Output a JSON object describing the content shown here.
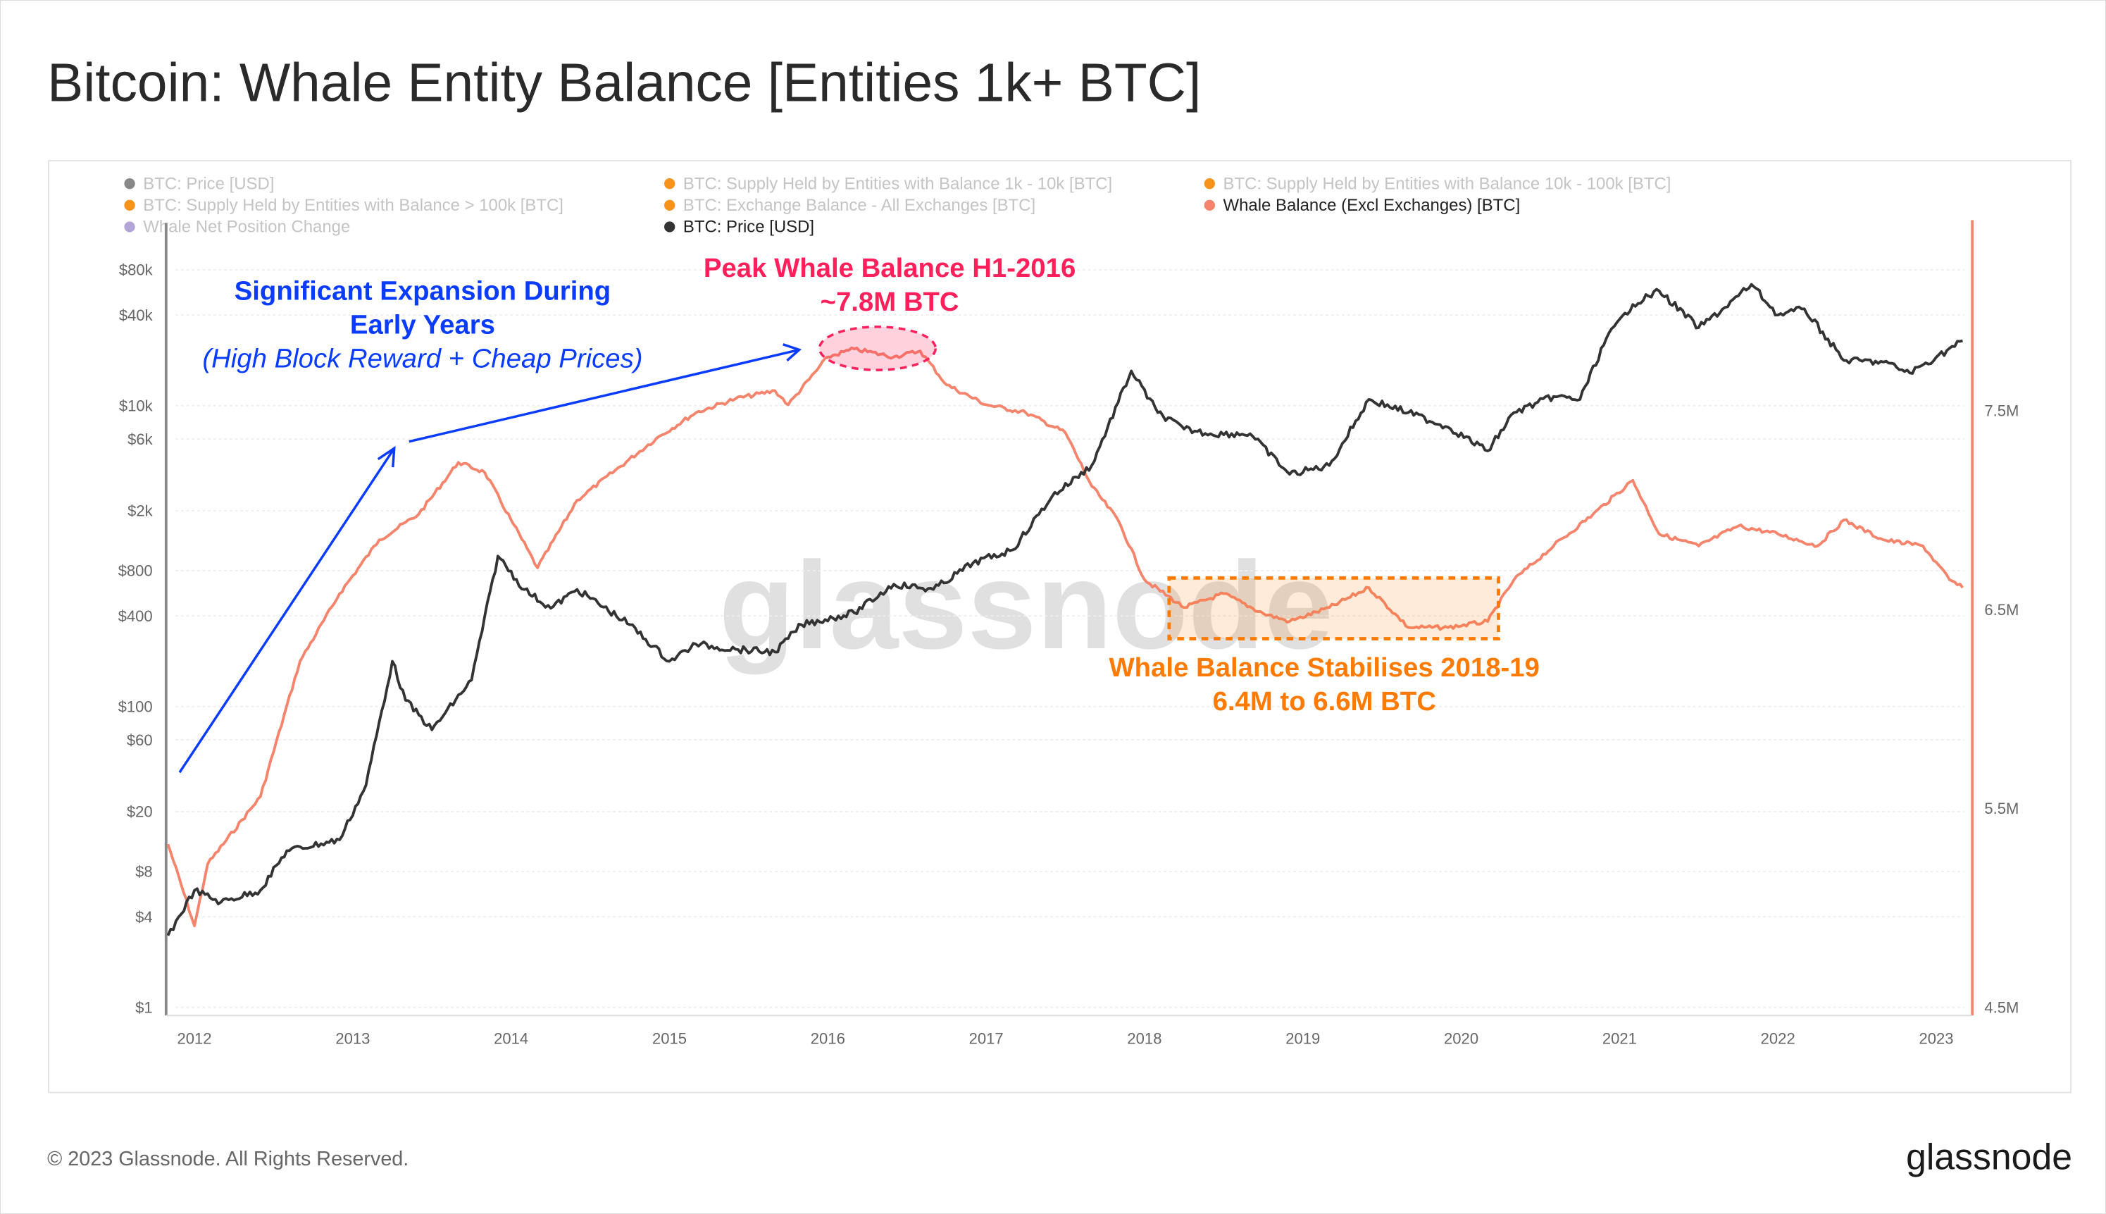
{
  "title": "Bitcoin: Whale Entity Balance [Entities 1k+ BTC]",
  "footer": {
    "copyright": "© 2023 Glassnode. All Rights Reserved.",
    "logo": "glassnode"
  },
  "watermark": "glassnode",
  "legend": [
    {
      "label": "BTC: Price [USD]",
      "color": "#888888",
      "active": false
    },
    {
      "label": "BTC: Supply Held by Entities with Balance 1k - 10k [BTC]",
      "color": "#f7931a",
      "active": false
    },
    {
      "label": "BTC: Supply Held by Entities with Balance 10k - 100k [BTC]",
      "color": "#f7931a",
      "active": false
    },
    {
      "label": "BTC: Supply Held by Entities with Balance > 100k [BTC]",
      "color": "#f7931a",
      "active": false
    },
    {
      "label": "BTC: Exchange Balance - All Exchanges [BTC]",
      "color": "#f7931a",
      "active": false
    },
    {
      "label": "Whale Balance (Excl Exchanges) [BTC]",
      "color": "#f4846c",
      "active": true
    },
    {
      "label": "Whale Net Position Change",
      "color": "#b3a6d6",
      "active": false
    },
    {
      "label": "BTC: Price [USD]",
      "color": "#333333",
      "active": true
    }
  ],
  "annotations": {
    "expansion_line1": "Significant Expansion During",
    "expansion_line2": "Early Years",
    "expansion_line3": "(High Block Reward + Cheap Prices)",
    "peak_line1": "Peak Whale Balance H1-2016",
    "peak_line2": "~7.8M BTC",
    "stable_line1": "Whale Balance Stabilises 2018-19",
    "stable_line2": "6.4M to 6.6M BTC",
    "colors": {
      "expansion": "#0a3cff",
      "peak": "#ff1f5a",
      "stable": "#ff7a00"
    }
  },
  "chart_data": {
    "type": "line",
    "title": "Bitcoin: Whale Entity Balance [Entities 1k+ BTC]",
    "x_ticks": [
      "2012",
      "2013",
      "2014",
      "2015",
      "2016",
      "2017",
      "2018",
      "2019",
      "2020",
      "2021",
      "2022",
      "2023"
    ],
    "y_left": {
      "scale": "log",
      "ticks": [
        {
          "v": 80000,
          "label": "$80k"
        },
        {
          "v": 40000,
          "label": "$40k"
        },
        {
          "v": 10000,
          "label": "$10k"
        },
        {
          "v": 6000,
          "label": "$6k"
        },
        {
          "v": 2000,
          "label": "$2k"
        },
        {
          "v": 800,
          "label": "$800"
        },
        {
          "v": 400,
          "label": "$400"
        },
        {
          "v": 100,
          "label": "$100"
        },
        {
          "v": 60,
          "label": "$60"
        },
        {
          "v": 20,
          "label": "$20"
        },
        {
          "v": 8,
          "label": "$8"
        },
        {
          "v": 4,
          "label": "$4"
        },
        {
          "v": 1,
          "label": "$1"
        }
      ],
      "range": [
        1,
        80000
      ]
    },
    "y_right": {
      "scale": "linear",
      "ticks": [
        {
          "v": 7.5,
          "label": "7.5M"
        },
        {
          "v": 6.5,
          "label": "6.5M"
        },
        {
          "v": 5.5,
          "label": "5.5M"
        },
        {
          "v": 4.5,
          "label": "4.5M"
        }
      ],
      "range": [
        4.5,
        7.8
      ],
      "unit": "M BTC"
    },
    "grid": true,
    "legend_position": "top",
    "series": [
      {
        "name": "BTC: Price [USD]",
        "axis": "left",
        "color": "#333333",
        "points": [
          [
            "2011-11",
            3
          ],
          [
            "2012-01",
            6
          ],
          [
            "2012-03",
            5
          ],
          [
            "2012-06",
            6
          ],
          [
            "2012-08",
            11
          ],
          [
            "2012-12",
            13
          ],
          [
            "2013-02",
            30
          ],
          [
            "2013-04",
            200
          ],
          [
            "2013-05",
            110
          ],
          [
            "2013-07",
            70
          ],
          [
            "2013-10",
            150
          ],
          [
            "2013-12",
            1000
          ],
          [
            "2014-02",
            600
          ],
          [
            "2014-04",
            450
          ],
          [
            "2014-06",
            600
          ],
          [
            "2014-10",
            350
          ],
          [
            "2015-01",
            200
          ],
          [
            "2015-03",
            260
          ],
          [
            "2015-06",
            240
          ],
          [
            "2015-09",
            230
          ],
          [
            "2015-11",
            350
          ],
          [
            "2016-03",
            420
          ],
          [
            "2016-06",
            650
          ],
          [
            "2016-09",
            600
          ],
          [
            "2016-12",
            900
          ],
          [
            "2017-03",
            1100
          ],
          [
            "2017-06",
            2500
          ],
          [
            "2017-09",
            4000
          ],
          [
            "2017-12",
            17000
          ],
          [
            "2018-02",
            9000
          ],
          [
            "2018-04",
            7000
          ],
          [
            "2018-06",
            6500
          ],
          [
            "2018-09",
            6500
          ],
          [
            "2018-12",
            3500
          ],
          [
            "2019-03",
            4000
          ],
          [
            "2019-06",
            11000
          ],
          [
            "2019-09",
            9000
          ],
          [
            "2019-12",
            7200
          ],
          [
            "2020-03",
            5000
          ],
          [
            "2020-05",
            9000
          ],
          [
            "2020-08",
            11500
          ],
          [
            "2020-10",
            11000
          ],
          [
            "2020-12",
            28000
          ],
          [
            "2021-02",
            47000
          ],
          [
            "2021-04",
            58000
          ],
          [
            "2021-07",
            33000
          ],
          [
            "2021-09",
            45000
          ],
          [
            "2021-11",
            64000
          ],
          [
            "2022-01",
            40000
          ],
          [
            "2022-03",
            44000
          ],
          [
            "2022-06",
            20000
          ],
          [
            "2022-09",
            19500
          ],
          [
            "2022-11",
            16500
          ],
          [
            "2023-01",
            21000
          ],
          [
            "2023-03",
            27000
          ]
        ]
      },
      {
        "name": "Whale Balance (Excl Exchanges) [BTC]",
        "axis": "right",
        "color": "#f4846c",
        "points": [
          [
            "2011-11",
            5.32
          ],
          [
            "2012-01",
            4.91
          ],
          [
            "2012-02",
            5.22
          ],
          [
            "2012-06",
            5.56
          ],
          [
            "2012-09",
            6.24
          ],
          [
            "2012-12",
            6.58
          ],
          [
            "2013-03",
            6.85
          ],
          [
            "2013-06",
            6.98
          ],
          [
            "2013-09",
            7.24
          ],
          [
            "2013-11",
            7.19
          ],
          [
            "2014-01",
            6.95
          ],
          [
            "2014-03",
            6.71
          ],
          [
            "2014-06",
            7.05
          ],
          [
            "2014-12",
            7.36
          ],
          [
            "2015-03",
            7.49
          ],
          [
            "2015-06",
            7.56
          ],
          [
            "2015-09",
            7.6
          ],
          [
            "2015-10",
            7.53
          ],
          [
            "2016-01",
            7.77
          ],
          [
            "2016-03",
            7.81
          ],
          [
            "2016-06",
            7.77
          ],
          [
            "2016-08",
            7.8
          ],
          [
            "2016-10",
            7.63
          ],
          [
            "2017-01",
            7.53
          ],
          [
            "2017-04",
            7.49
          ],
          [
            "2017-07",
            7.39
          ],
          [
            "2017-09",
            7.12
          ],
          [
            "2017-11",
            6.95
          ],
          [
            "2018-01",
            6.65
          ],
          [
            "2018-04",
            6.51
          ],
          [
            "2018-07",
            6.58
          ],
          [
            "2018-10",
            6.48
          ],
          [
            "2018-12",
            6.44
          ],
          [
            "2019-03",
            6.51
          ],
          [
            "2019-06",
            6.61
          ],
          [
            "2019-09",
            6.41
          ],
          [
            "2019-12",
            6.41
          ],
          [
            "2020-03",
            6.44
          ],
          [
            "2020-05",
            6.65
          ],
          [
            "2020-08",
            6.82
          ],
          [
            "2020-11",
            6.98
          ],
          [
            "2021-02",
            7.15
          ],
          [
            "2021-04",
            6.88
          ],
          [
            "2021-07",
            6.82
          ],
          [
            "2021-10",
            6.92
          ],
          [
            "2022-01",
            6.88
          ],
          [
            "2022-04",
            6.82
          ],
          [
            "2022-06",
            6.95
          ],
          [
            "2022-09",
            6.85
          ],
          [
            "2022-12",
            6.82
          ],
          [
            "2023-02",
            6.65
          ],
          [
            "2023-03",
            6.61
          ]
        ]
      }
    ]
  }
}
